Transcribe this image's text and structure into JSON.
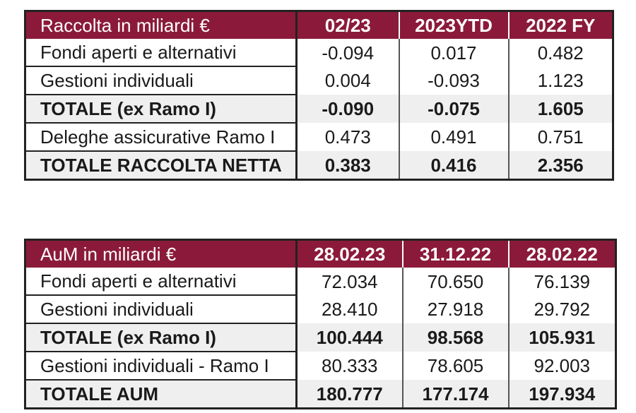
{
  "table1": {
    "headers": [
      "Raccolta in miliardi €",
      "02/23",
      "2023YTD",
      "2022 FY"
    ],
    "rows": [
      {
        "label": "Fondi aperti e alternativi",
        "values": [
          "-0.094",
          "0.017",
          "0.482"
        ]
      },
      {
        "label": "Gestioni individuali",
        "values": [
          "0.004",
          "-0.093",
          "1.123"
        ]
      },
      {
        "label": "TOTALE (ex Ramo I)",
        "values": [
          "-0.090",
          "-0.075",
          "1.605"
        ]
      },
      {
        "label": "Deleghe assicurative Ramo I",
        "values": [
          "0.473",
          "0.491",
          "0.751"
        ]
      },
      {
        "label": "TOTALE RACCOLTA NETTA",
        "values": [
          "0.383",
          "0.416",
          "2.356"
        ]
      }
    ]
  },
  "table2": {
    "headers": [
      "AuM in miliardi €",
      "28.02.23",
      "31.12.22",
      "28.02.22"
    ],
    "rows": [
      {
        "label": "Fondi aperti e alternativi",
        "values": [
          "72.034",
          "70.650",
          "76.139"
        ]
      },
      {
        "label": "Gestioni individuali",
        "values": [
          "28.410",
          "27.918",
          "29.792"
        ]
      },
      {
        "label": "TOTALE (ex Ramo I)",
        "values": [
          "100.444",
          "98.568",
          "105.931"
        ]
      },
      {
        "label": "Gestioni individuali - Ramo I",
        "values": [
          "80.333",
          "78.605",
          "92.003"
        ]
      },
      {
        "label": "TOTALE AUM",
        "values": [
          "180.777",
          "177.174",
          "197.934"
        ]
      }
    ]
  },
  "colors": {
    "header_bg": "#8b1a3a",
    "header_text": "#ffffff",
    "shade_row": "#efefef"
  }
}
